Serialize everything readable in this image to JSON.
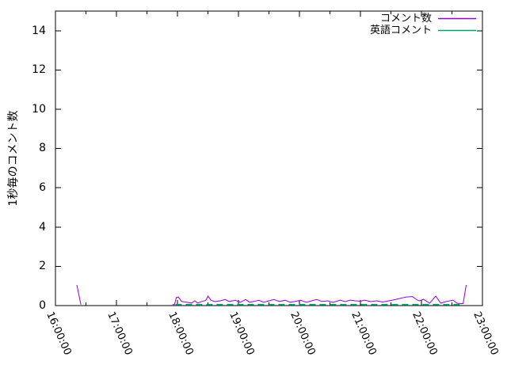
{
  "chart_data": {
    "type": "line",
    "title": "",
    "xlabel": "",
    "ylabel": "1秒毎のコメント数",
    "x_tick_labels": [
      "16:00:00",
      "17:00:00",
      "18:00:00",
      "19:00:00",
      "20:00:00",
      "21:00:00",
      "22:00:00",
      "23:00:00"
    ],
    "y_tick_labels": [
      "0",
      "2",
      "4",
      "6",
      "8",
      "10",
      "12",
      "14"
    ],
    "y_tick_values": [
      0,
      2,
      4,
      6,
      8,
      10,
      12,
      14
    ],
    "ylim": [
      0,
      15
    ],
    "x_range_minutes": [
      0,
      420
    ],
    "x_minor_tick_minutes": 30,
    "grid": false,
    "legend_position": "top-right-inside",
    "legend": [
      {
        "label": "コメント数",
        "color": "#9400d3"
      },
      {
        "label": "英語コメント",
        "color": "#009e73"
      }
    ],
    "series": [
      {
        "name": "コメント数",
        "color": "#9400d3",
        "dashed": false,
        "x_unit": "minutes after 16:00",
        "segments": [
          [
            [
              21,
              1.05
            ],
            [
              25,
              0
            ]
          ],
          [
            [
              115,
              0.04
            ],
            [
              117,
              0.04
            ],
            [
              119,
              0.42
            ],
            [
              121,
              0.43
            ],
            [
              124,
              0.21
            ],
            [
              129,
              0.17
            ],
            [
              134,
              0.13
            ],
            [
              137,
              0.24
            ],
            [
              140,
              0.13
            ],
            [
              144,
              0.21
            ],
            [
              148,
              0.27
            ],
            [
              150,
              0.48
            ],
            [
              153,
              0.27
            ],
            [
              157,
              0.2
            ],
            [
              162,
              0.24
            ],
            [
              167,
              0.31
            ],
            [
              171,
              0.21
            ],
            [
              177,
              0.27
            ],
            [
              182,
              0.17
            ],
            [
              187,
              0.31
            ],
            [
              191,
              0.17
            ],
            [
              195,
              0.21
            ],
            [
              200,
              0.27
            ],
            [
              205,
              0.17
            ],
            [
              210,
              0.24
            ],
            [
              215,
              0.31
            ],
            [
              220,
              0.21
            ],
            [
              226,
              0.27
            ],
            [
              231,
              0.17
            ],
            [
              236,
              0.21
            ],
            [
              241,
              0.27
            ],
            [
              247,
              0.17
            ],
            [
              252,
              0.24
            ],
            [
              257,
              0.31
            ],
            [
              262,
              0.21
            ],
            [
              268,
              0.24
            ],
            [
              273,
              0.16
            ],
            [
              280,
              0.28
            ],
            [
              285,
              0.2
            ],
            [
              290,
              0.28
            ],
            [
              295,
              0.24
            ],
            [
              300,
              0.22
            ],
            [
              304,
              0.28
            ],
            [
              310,
              0.2
            ],
            [
              316,
              0.24
            ],
            [
              322,
              0.18
            ],
            [
              328,
              0.24
            ],
            [
              335,
              0.32
            ],
            [
              345,
              0.44
            ],
            [
              351,
              0.46
            ],
            [
              356,
              0.28
            ],
            [
              358,
              0.24
            ],
            [
              362,
              0.32
            ],
            [
              368,
              0.12
            ],
            [
              374,
              0.48
            ],
            [
              379,
              0.12
            ],
            [
              384,
              0.2
            ],
            [
              391,
              0.28
            ],
            [
              395,
              0.12
            ],
            [
              399,
              0.1
            ],
            [
              401,
              0.1
            ],
            [
              404,
              1.05
            ]
          ]
        ]
      },
      {
        "name": "英語コメント",
        "color": "#009e73",
        "dashed": true,
        "x_unit": "minutes after 16:00",
        "segments": [
          [
            [
              118,
              0
            ],
            [
              401,
              0
            ]
          ]
        ]
      }
    ]
  },
  "colors": {
    "background": "#ffffff",
    "axis": "#000000",
    "series1": "#9400d3",
    "series2": "#009e73"
  }
}
